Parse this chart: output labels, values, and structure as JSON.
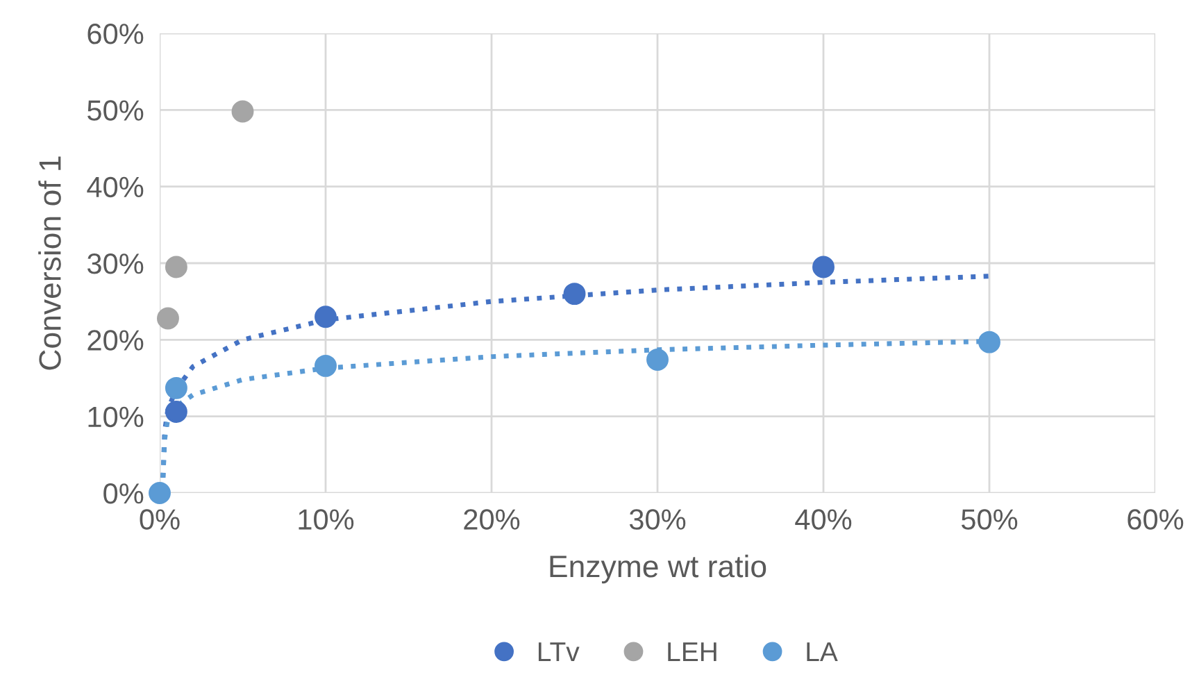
{
  "chart_data": {
    "type": "scatter",
    "xlabel": "Enzyme wt ratio",
    "ylabel": "Conversion of 1",
    "xlim": [
      0,
      60
    ],
    "ylim": [
      0,
      60
    ],
    "xticks": [
      {
        "value": 0,
        "label": "0%"
      },
      {
        "value": 10,
        "label": "10%"
      },
      {
        "value": 20,
        "label": "20%"
      },
      {
        "value": 30,
        "label": "30%"
      },
      {
        "value": 40,
        "label": "40%"
      },
      {
        "value": 50,
        "label": "50%"
      },
      {
        "value": 60,
        "label": "60%"
      }
    ],
    "yticks": [
      {
        "value": 0,
        "label": "0%"
      },
      {
        "value": 10,
        "label": "10%"
      },
      {
        "value": 20,
        "label": "20%"
      },
      {
        "value": 30,
        "label": "30%"
      },
      {
        "value": 40,
        "label": "40%"
      },
      {
        "value": 50,
        "label": "50%"
      },
      {
        "value": 60,
        "label": "60%"
      }
    ],
    "grid": true,
    "legend": "bottom",
    "marker": "circle",
    "series": [
      {
        "name": "LTv",
        "color": "#4472c4",
        "x": [
          1,
          10,
          25,
          40
        ],
        "values": [
          10.6,
          23,
          26,
          29.5
        ]
      },
      {
        "name": "LEH",
        "color": "#a5a5a5",
        "x": [
          0.5,
          1,
          5
        ],
        "values": [
          22.8,
          29.5,
          49.8
        ]
      },
      {
        "name": "LA",
        "color": "#5b9bd5",
        "x": [
          0,
          1,
          10,
          30,
          50
        ],
        "values": [
          0,
          13.7,
          16.6,
          17.4,
          19.7
        ]
      },
      {
        "type": "line",
        "color": "#4472c4",
        "marker": "none",
        "line_style": "dotted",
        "x": [
          0.2,
          0.3,
          0.5,
          1,
          2,
          5,
          10,
          20,
          30,
          40,
          50
        ],
        "values": [
          2,
          8,
          11,
          13.5,
          16.5,
          20,
          22.6,
          25,
          26.5,
          27.5,
          28.3
        ]
      },
      {
        "type": "line",
        "color": "#5b9bd5",
        "marker": "none",
        "line_style": "dotted",
        "x": [
          0.2,
          0.3,
          0.5,
          1,
          2,
          5,
          10,
          20,
          30,
          40,
          50
        ],
        "values": [
          2,
          7,
          9.8,
          11.3,
          12.8,
          14.8,
          16.3,
          17.8,
          18.7,
          19.3,
          19.8
        ]
      }
    ]
  }
}
